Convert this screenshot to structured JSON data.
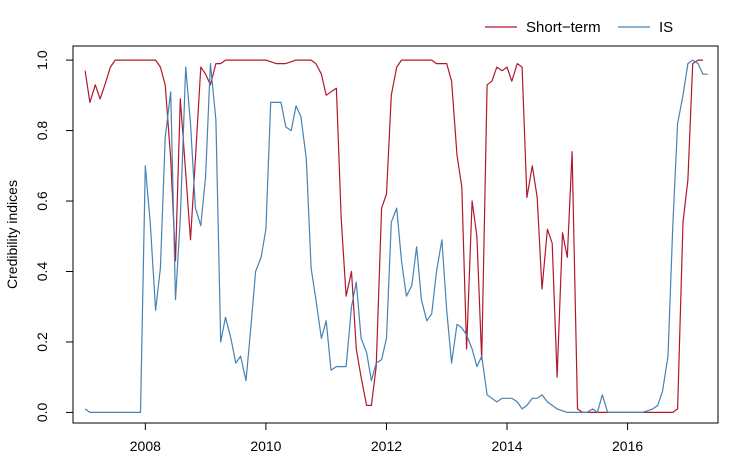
{
  "chart_data": {
    "type": "line",
    "title": "",
    "xlabel": "",
    "ylabel": "Credibility indices",
    "xlim": [
      2006.8,
      2017.5
    ],
    "ylim": [
      -0.03,
      1.04
    ],
    "x_ticks": [
      2008,
      2010,
      2012,
      2014,
      2016
    ],
    "x_tick_labels": [
      "2008",
      "2010",
      "2012",
      "2014",
      "2016"
    ],
    "y_ticks": [
      0.0,
      0.2,
      0.4,
      0.6,
      0.8,
      1.0
    ],
    "y_tick_labels": [
      "0.0",
      "0.2",
      "0.4",
      "0.6",
      "0.8",
      "1.0"
    ],
    "grid": false,
    "legend_position": "top-right, outside plot",
    "series": [
      {
        "name": "Short−term",
        "color": "#b2182b",
        "points": [
          [
            2007.0,
            0.97
          ],
          [
            2007.08,
            0.88
          ],
          [
            2007.17,
            0.93
          ],
          [
            2007.25,
            0.89
          ],
          [
            2007.33,
            0.93
          ],
          [
            2007.42,
            0.98
          ],
          [
            2007.5,
            1.0
          ],
          [
            2007.58,
            1.0
          ],
          [
            2007.75,
            1.0
          ],
          [
            2008.0,
            1.0
          ],
          [
            2008.17,
            1.0
          ],
          [
            2008.25,
            0.98
          ],
          [
            2008.33,
            0.93
          ],
          [
            2008.42,
            0.72
          ],
          [
            2008.5,
            0.43
          ],
          [
            2008.58,
            0.89
          ],
          [
            2008.67,
            0.68
          ],
          [
            2008.75,
            0.49
          ],
          [
            2008.83,
            0.72
          ],
          [
            2008.92,
            0.98
          ],
          [
            2009.0,
            0.96
          ],
          [
            2009.08,
            0.93
          ],
          [
            2009.17,
            0.99
          ],
          [
            2009.25,
            0.99
          ],
          [
            2009.33,
            1.0
          ],
          [
            2009.5,
            1.0
          ],
          [
            2009.75,
            1.0
          ],
          [
            2010.0,
            1.0
          ],
          [
            2010.17,
            0.99
          ],
          [
            2010.33,
            0.99
          ],
          [
            2010.5,
            1.0
          ],
          [
            2010.67,
            1.0
          ],
          [
            2010.75,
            1.0
          ],
          [
            2010.83,
            0.99
          ],
          [
            2010.92,
            0.96
          ],
          [
            2011.0,
            0.9
          ],
          [
            2011.08,
            0.91
          ],
          [
            2011.17,
            0.92
          ],
          [
            2011.25,
            0.55
          ],
          [
            2011.33,
            0.33
          ],
          [
            2011.42,
            0.4
          ],
          [
            2011.5,
            0.18
          ],
          [
            2011.58,
            0.1
          ],
          [
            2011.67,
            0.02
          ],
          [
            2011.75,
            0.02
          ],
          [
            2011.83,
            0.13
          ],
          [
            2011.92,
            0.58
          ],
          [
            2012.0,
            0.62
          ],
          [
            2012.08,
            0.9
          ],
          [
            2012.17,
            0.98
          ],
          [
            2012.25,
            1.0
          ],
          [
            2012.5,
            1.0
          ],
          [
            2012.75,
            1.0
          ],
          [
            2012.83,
            0.99
          ],
          [
            2013.0,
            0.99
          ],
          [
            2013.08,
            0.94
          ],
          [
            2013.17,
            0.73
          ],
          [
            2013.25,
            0.64
          ],
          [
            2013.33,
            0.18
          ],
          [
            2013.42,
            0.6
          ],
          [
            2013.5,
            0.5
          ],
          [
            2013.58,
            0.15
          ],
          [
            2013.67,
            0.93
          ],
          [
            2013.75,
            0.94
          ],
          [
            2013.83,
            0.98
          ],
          [
            2013.92,
            0.97
          ],
          [
            2014.0,
            0.98
          ],
          [
            2014.08,
            0.94
          ],
          [
            2014.17,
            0.99
          ],
          [
            2014.25,
            0.98
          ],
          [
            2014.33,
            0.61
          ],
          [
            2014.42,
            0.7
          ],
          [
            2014.5,
            0.61
          ],
          [
            2014.58,
            0.35
          ],
          [
            2014.67,
            0.52
          ],
          [
            2014.75,
            0.48
          ],
          [
            2014.83,
            0.1
          ],
          [
            2014.92,
            0.51
          ],
          [
            2015.0,
            0.44
          ],
          [
            2015.08,
            0.74
          ],
          [
            2015.17,
            0.01
          ],
          [
            2015.25,
            0.0
          ],
          [
            2015.5,
            0.0
          ],
          [
            2016.0,
            0.0
          ],
          [
            2016.5,
            0.0
          ],
          [
            2016.75,
            0.0
          ],
          [
            2016.83,
            0.01
          ],
          [
            2016.92,
            0.54
          ],
          [
            2017.0,
            0.66
          ],
          [
            2017.08,
            0.99
          ],
          [
            2017.17,
            1.0
          ],
          [
            2017.25,
            1.0
          ]
        ]
      },
      {
        "name": "IS",
        "color": "#4682b4",
        "points": [
          [
            2007.0,
            0.01
          ],
          [
            2007.08,
            0.0
          ],
          [
            2007.5,
            0.0
          ],
          [
            2007.92,
            0.0
          ],
          [
            2008.0,
            0.7
          ],
          [
            2008.08,
            0.54
          ],
          [
            2008.17,
            0.29
          ],
          [
            2008.25,
            0.41
          ],
          [
            2008.33,
            0.78
          ],
          [
            2008.42,
            0.91
          ],
          [
            2008.5,
            0.32
          ],
          [
            2008.58,
            0.55
          ],
          [
            2008.67,
            0.98
          ],
          [
            2008.75,
            0.82
          ],
          [
            2008.83,
            0.58
          ],
          [
            2008.92,
            0.53
          ],
          [
            2009.0,
            0.67
          ],
          [
            2009.08,
            0.99
          ],
          [
            2009.17,
            0.83
          ],
          [
            2009.25,
            0.2
          ],
          [
            2009.33,
            0.27
          ],
          [
            2009.42,
            0.21
          ],
          [
            2009.5,
            0.14
          ],
          [
            2009.58,
            0.16
          ],
          [
            2009.67,
            0.09
          ],
          [
            2009.75,
            0.24
          ],
          [
            2009.83,
            0.4
          ],
          [
            2009.92,
            0.44
          ],
          [
            2010.0,
            0.52
          ],
          [
            2010.08,
            0.88
          ],
          [
            2010.17,
            0.88
          ],
          [
            2010.25,
            0.88
          ],
          [
            2010.33,
            0.81
          ],
          [
            2010.42,
            0.8
          ],
          [
            2010.5,
            0.87
          ],
          [
            2010.58,
            0.84
          ],
          [
            2010.67,
            0.72
          ],
          [
            2010.75,
            0.41
          ],
          [
            2010.83,
            0.32
          ],
          [
            2010.92,
            0.21
          ],
          [
            2011.0,
            0.26
          ],
          [
            2011.08,
            0.12
          ],
          [
            2011.17,
            0.13
          ],
          [
            2011.25,
            0.13
          ],
          [
            2011.33,
            0.13
          ],
          [
            2011.42,
            0.3
          ],
          [
            2011.5,
            0.37
          ],
          [
            2011.58,
            0.21
          ],
          [
            2011.67,
            0.17
          ],
          [
            2011.75,
            0.09
          ],
          [
            2011.83,
            0.14
          ],
          [
            2011.92,
            0.15
          ],
          [
            2012.0,
            0.21
          ],
          [
            2012.08,
            0.54
          ],
          [
            2012.17,
            0.58
          ],
          [
            2012.25,
            0.43
          ],
          [
            2012.33,
            0.33
          ],
          [
            2012.42,
            0.36
          ],
          [
            2012.5,
            0.47
          ],
          [
            2012.58,
            0.32
          ],
          [
            2012.67,
            0.26
          ],
          [
            2012.75,
            0.28
          ],
          [
            2012.83,
            0.4
          ],
          [
            2012.92,
            0.49
          ],
          [
            2013.0,
            0.29
          ],
          [
            2013.08,
            0.14
          ],
          [
            2013.17,
            0.25
          ],
          [
            2013.25,
            0.24
          ],
          [
            2013.33,
            0.22
          ],
          [
            2013.42,
            0.18
          ],
          [
            2013.5,
            0.13
          ],
          [
            2013.58,
            0.16
          ],
          [
            2013.67,
            0.05
          ],
          [
            2013.75,
            0.04
          ],
          [
            2013.83,
            0.03
          ],
          [
            2013.92,
            0.04
          ],
          [
            2014.0,
            0.04
          ],
          [
            2014.08,
            0.04
          ],
          [
            2014.17,
            0.03
          ],
          [
            2014.25,
            0.01
          ],
          [
            2014.33,
            0.02
          ],
          [
            2014.42,
            0.04
          ],
          [
            2014.5,
            0.04
          ],
          [
            2014.58,
            0.05
          ],
          [
            2014.67,
            0.03
          ],
          [
            2014.75,
            0.02
          ],
          [
            2014.83,
            0.01
          ],
          [
            2015.0,
            0.0
          ],
          [
            2015.17,
            0.0
          ],
          [
            2015.25,
            0.0
          ],
          [
            2015.33,
            0.0
          ],
          [
            2015.42,
            0.01
          ],
          [
            2015.5,
            0.0
          ],
          [
            2015.58,
            0.05
          ],
          [
            2015.67,
            0.0
          ],
          [
            2016.0,
            0.0
          ],
          [
            2016.25,
            0.0
          ],
          [
            2016.42,
            0.01
          ],
          [
            2016.5,
            0.02
          ],
          [
            2016.58,
            0.06
          ],
          [
            2016.67,
            0.16
          ],
          [
            2016.75,
            0.53
          ],
          [
            2016.83,
            0.82
          ],
          [
            2016.92,
            0.9
          ],
          [
            2017.0,
            0.99
          ],
          [
            2017.08,
            1.0
          ],
          [
            2017.17,
            0.99
          ],
          [
            2017.25,
            0.96
          ],
          [
            2017.33,
            0.96
          ]
        ]
      }
    ]
  }
}
